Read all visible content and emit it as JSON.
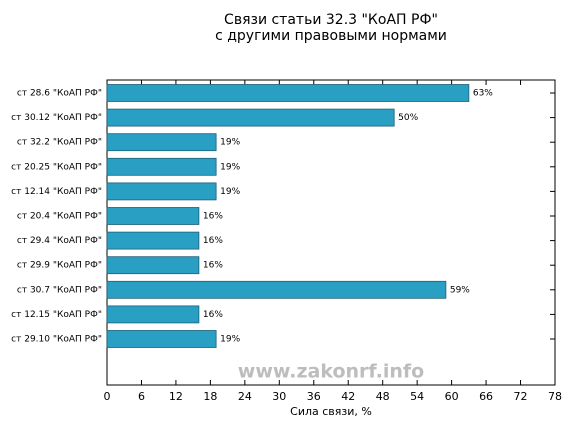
{
  "chart_data": {
    "type": "barh",
    "title": "Связи статьи 32.3 \"КоАП РФ\"",
    "subtitle": "с другими правовыми нормами",
    "xlabel": "Сила связи, %",
    "watermark": "www.zakonrf.info",
    "categories": [
      "ст 28.6 \"КоАП РФ\"",
      "ст 30.12 \"КоАП РФ\"",
      "ст 32.2 \"КоАП РФ\"",
      "ст 20.25 \"КоАП РФ\"",
      "ст 12.14 \"КоАП РФ\"",
      "ст 20.4 \"КоАП РФ\"",
      "ст 29.4 \"КоАП РФ\"",
      "ст 29.9 \"КоАП РФ\"",
      "ст 30.7 \"КоАП РФ\"",
      "ст 12.15 \"КоАП РФ\"",
      "ст 29.10 \"КоАП РФ\""
    ],
    "values": [
      63,
      50,
      19,
      19,
      19,
      16,
      16,
      16,
      59,
      16,
      19
    ],
    "value_labels": [
      "63%",
      "50%",
      "19%",
      "19%",
      "19%",
      "16%",
      "16%",
      "16%",
      "59%",
      "16%",
      "19%"
    ],
    "color": "#2a9fc4",
    "xlim": [
      0,
      78
    ],
    "xticks": [
      0,
      6,
      12,
      18,
      24,
      30,
      36,
      42,
      48,
      54,
      60,
      66,
      72,
      78
    ]
  }
}
